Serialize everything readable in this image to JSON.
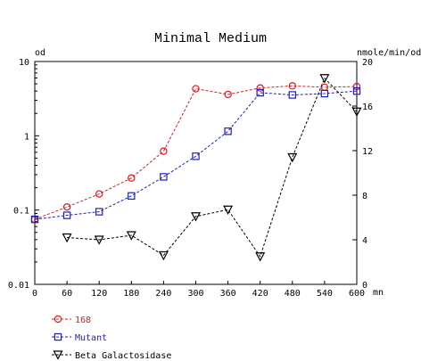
{
  "chart_data": {
    "type": "line",
    "title": "Minimal Medium",
    "x_unit": "mn",
    "left_unit": "od",
    "right_unit": "nmole/min/od",
    "x_range": [
      0,
      600
    ],
    "x_ticks": [
      "0",
      "60",
      "120",
      "180",
      "240",
      "300",
      "360",
      "420",
      "480",
      "540",
      "600"
    ],
    "left_axis": {
      "scale": "log",
      "range": [
        0.01,
        10
      ],
      "ticks": [
        "10",
        "1",
        "0.1",
        "0.01"
      ]
    },
    "right_axis": {
      "scale": "linear",
      "range": [
        0,
        20
      ],
      "ticks": [
        "20",
        "16",
        "12",
        "8",
        "4",
        "0"
      ]
    },
    "grid": false,
    "legend_position": "bottom-left",
    "series": [
      {
        "name": "168",
        "axis": "left",
        "color": "#e0191c",
        "marker": "circle",
        "x": [
          0,
          60,
          120,
          180,
          240,
          300,
          360,
          420,
          480,
          540,
          600
        ],
        "values": [
          0.075,
          0.11,
          0.165,
          0.27,
          0.62,
          4.3,
          3.6,
          4.4,
          4.7,
          4.5,
          4.6
        ]
      },
      {
        "name": "Mutant",
        "axis": "left",
        "color": "#1c1ccd",
        "marker": "square",
        "x": [
          0,
          60,
          120,
          180,
          240,
          300,
          360,
          420,
          480,
          540,
          600
        ],
        "values": [
          0.075,
          0.085,
          0.095,
          0.155,
          0.28,
          0.53,
          1.15,
          3.8,
          3.55,
          3.7,
          4.0
        ]
      },
      {
        "name": "Beta Galactosidase",
        "axis": "right",
        "color": "#000000",
        "marker": "triangle-down",
        "x": [
          60,
          120,
          180,
          240,
          300,
          360,
          420,
          480,
          540,
          600
        ],
        "values": [
          4.2,
          4.0,
          4.4,
          2.6,
          6.1,
          6.7,
          2.5,
          11.4,
          18.5,
          15.5
        ]
      }
    ]
  }
}
